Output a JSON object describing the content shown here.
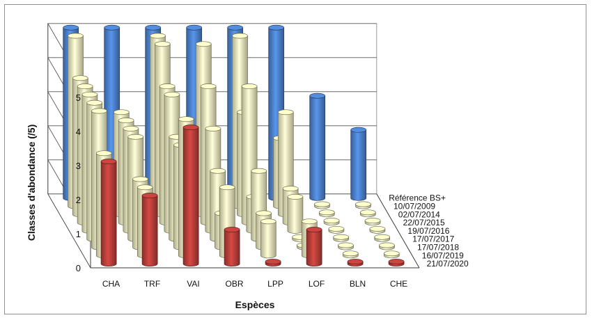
{
  "chart_data": {
    "type": "bar",
    "variant": "3d-cylinder",
    "title": "",
    "xlabel": "Espèces",
    "ylabel": "Classes d'abondance (/5)",
    "ylim": [
      0,
      5
    ],
    "yticks": [
      "0",
      "1",
      "2",
      "3",
      "4",
      "5"
    ],
    "categories": [
      "CHA",
      "TRF",
      "VAI",
      "OBR",
      "LPP",
      "LOF",
      "BLN",
      "CHE"
    ],
    "grid": true,
    "series": [
      {
        "name": "Référence BS+",
        "color": "#4f86d4",
        "values": [
          5,
          5,
          5,
          5,
          5,
          5,
          3,
          2
        ]
      },
      {
        "name": "10/07/2009",
        "color": "#f5f1c2",
        "values": [
          5,
          1,
          5,
          2,
          5,
          2,
          0,
          0
        ]
      },
      {
        "name": "02/07/2014",
        "color": "#f5f1c2",
        "values": [
          4,
          3,
          5,
          5,
          3,
          3,
          0,
          0
        ]
      },
      {
        "name": "22/07/2015",
        "color": "#f5f1c2",
        "values": [
          4,
          3,
          4,
          4,
          4,
          1,
          0,
          0
        ]
      },
      {
        "name": "19/07/2016",
        "color": "#f5f1c2",
        "values": [
          4,
          3,
          4,
          3,
          1,
          1,
          0,
          0
        ]
      },
      {
        "name": "17/07/2017",
        "color": "#f5f1c2",
        "values": [
          4,
          3,
          3,
          2,
          2,
          0,
          0,
          0
        ]
      },
      {
        "name": "17/07/2018",
        "color": "#f5f1c2",
        "values": [
          4,
          2,
          3,
          1,
          1,
          0,
          0,
          0
        ]
      },
      {
        "name": "16/07/2019",
        "color": "#f5f1c2",
        "values": [
          3,
          2,
          4,
          2,
          1,
          1,
          0,
          0
        ]
      },
      {
        "name": "21/07/2020",
        "color": "#c0413c",
        "values": [
          3,
          2,
          4,
          1,
          0,
          1,
          0,
          0
        ]
      }
    ]
  }
}
